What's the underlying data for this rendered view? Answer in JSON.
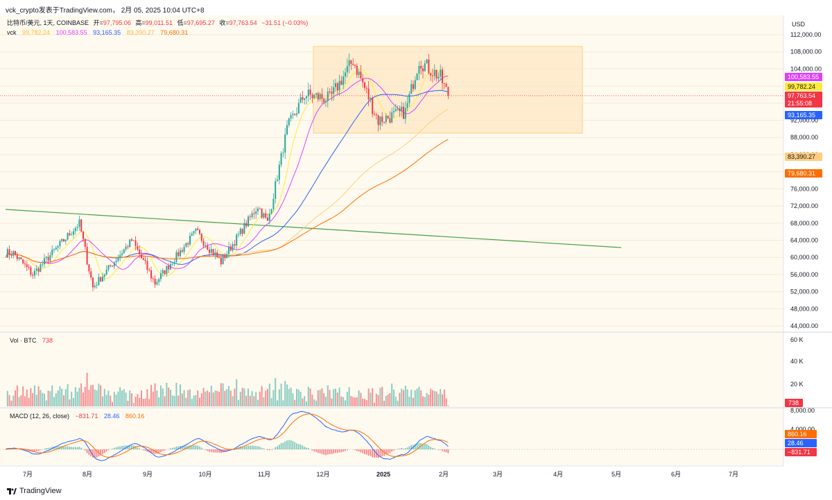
{
  "header": {
    "caption": "vck_crypto发表于TradingView.com，  2月 05, 2025 10:04 UTC+8"
  },
  "legend": {
    "symbol": "比特币/美元, 1天, COINBASE",
    "open_label": "开=",
    "open": "97,795.06",
    "high_label": "高=",
    "high": "99,011.51",
    "low_label": "低=",
    "low": "97,695.27",
    "close_label": "收=",
    "close": "97,763.54",
    "change": "−31.51 (−0.03%)",
    "indicator_name": "vck",
    "ind_values": [
      "99,782.24",
      "100,583.55",
      "93,165.35",
      "83,390.27",
      "79,680.31"
    ]
  },
  "price_axis": {
    "currency": "USD",
    "ticks": [
      "112,000.00",
      "108,000.00",
      "104,000.00",
      "100,000.00",
      "96,000.00",
      "92,000.00",
      "88,000.00",
      "84,000.00",
      "80,000.00",
      "76,000.00",
      "72,000.00",
      "68,000.00",
      "64,000.00",
      "60,000.00",
      "56,000.00",
      "52,000.00",
      "48,000.00",
      "44,000.00"
    ],
    "badges": [
      {
        "text": "100,583.55",
        "color": "#e040fb"
      },
      {
        "text": "99,782.24",
        "color": "#ffeb3b"
      },
      {
        "text": "97,763.54",
        "color": "#f23645"
      },
      {
        "text": "21:55:08",
        "color": "#f23645"
      },
      {
        "text": "93,165.35",
        "color": "#2962ff"
      },
      {
        "text": "83,390.27",
        "color": "#ffcc80"
      },
      {
        "text": "79,680.31",
        "color": "#ff6d00"
      }
    ]
  },
  "volume": {
    "label": "Vol · BTC",
    "value": "738",
    "ticks": [
      "60 K",
      "40 K",
      "20 K"
    ],
    "badge": "738"
  },
  "macd": {
    "label": "MACD (12, 26, close)",
    "hist": "−831.71",
    "macd": "28.46",
    "signal": "860.16",
    "ticks": [
      "8,000.00",
      "4,000.00"
    ],
    "badges": [
      {
        "text": "860.16",
        "color": "#ff6d00"
      },
      {
        "text": "28.46",
        "color": "#2962ff"
      },
      {
        "text": "−831.71",
        "color": "#f23645"
      }
    ]
  },
  "time_axis": {
    "labels": [
      "7月",
      "8月",
      "9月",
      "10月",
      "11月",
      "12月",
      "2025",
      "2月",
      "3月",
      "4月",
      "5月",
      "6月",
      "7月"
    ]
  },
  "footer": {
    "brand": "TradingView"
  },
  "colors": {
    "up": "#26a69a",
    "down": "#f23645",
    "ma_pink": "#e040fb",
    "ma_yellow": "#ffeb3b",
    "ma_blue": "#2962ff",
    "ma_peach": "#ffcc80",
    "ma_orange": "#ff6d00",
    "trendline": "#43a047",
    "panel_bg": "#fffaef"
  },
  "chart_data": {
    "type": "candlestick",
    "symbol": "BTC/USD",
    "price_range": [
      44000,
      112000
    ],
    "anchors": [
      {
        "date": "2024-06-25",
        "price": 61000
      },
      {
        "date": "2024-07-05",
        "price": 56000
      },
      {
        "date": "2024-07-29",
        "price": 68000
      },
      {
        "date": "2024-08-05",
        "price": 53000
      },
      {
        "date": "2024-08-25",
        "price": 64000
      },
      {
        "date": "2024-09-06",
        "price": 54000
      },
      {
        "date": "2024-09-27",
        "price": 66000
      },
      {
        "date": "2024-10-10",
        "price": 59000
      },
      {
        "date": "2024-10-29",
        "price": 72000
      },
      {
        "date": "2024-11-03",
        "price": 68000
      },
      {
        "date": "2024-11-13",
        "price": 90000
      },
      {
        "date": "2024-11-22",
        "price": 98000
      },
      {
        "date": "2024-12-05",
        "price": 97000
      },
      {
        "date": "2024-12-17",
        "price": 106000
      },
      {
        "date": "2024-12-30",
        "price": 92000
      },
      {
        "date": "2025-01-13",
        "price": 94000
      },
      {
        "date": "2025-01-20",
        "price": 106000
      },
      {
        "date": "2025-01-31",
        "price": 102000
      },
      {
        "date": "2025-02-04",
        "price": 97763
      }
    ],
    "last_close": 97763.54,
    "moving_averages": {
      "pink": 100583.55,
      "yellow": 99782.24,
      "blue": 93165.35,
      "peach": 83390.27,
      "orange": 79680.31
    },
    "volume_last": 738,
    "volume_range": [
      0,
      60000
    ],
    "macd_last": {
      "macd": 28.46,
      "signal": 860.16,
      "hist": -831.71
    }
  }
}
